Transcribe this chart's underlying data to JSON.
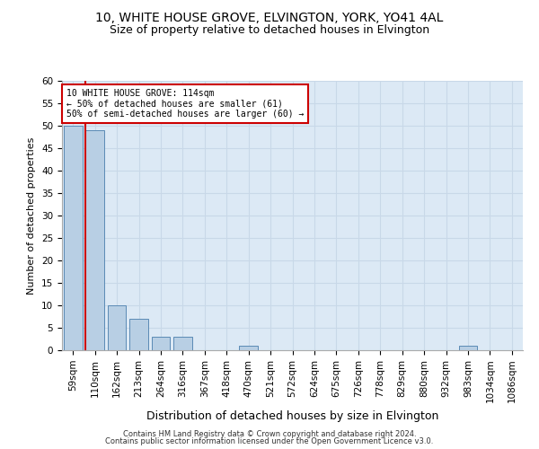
{
  "title1": "10, WHITE HOUSE GROVE, ELVINGTON, YORK, YO41 4AL",
  "title2": "Size of property relative to detached houses in Elvington",
  "xlabel": "Distribution of detached houses by size in Elvington",
  "ylabel": "Number of detached properties",
  "categories": [
    "59sqm",
    "110sqm",
    "162sqm",
    "213sqm",
    "264sqm",
    "316sqm",
    "367sqm",
    "418sqm",
    "470sqm",
    "521sqm",
    "572sqm",
    "624sqm",
    "675sqm",
    "726sqm",
    "778sqm",
    "829sqm",
    "880sqm",
    "932sqm",
    "983sqm",
    "1034sqm",
    "1086sqm"
  ],
  "values": [
    50,
    49,
    10,
    7,
    3,
    3,
    0,
    0,
    1,
    0,
    0,
    0,
    0,
    0,
    0,
    0,
    0,
    0,
    1,
    0,
    0
  ],
  "bar_color": "#b8cfe4",
  "bar_edge_color": "#5a8ab5",
  "red_line_index": 1,
  "annotation_text": "10 WHITE HOUSE GROVE: 114sqm\n← 50% of detached houses are smaller (61)\n50% of semi-detached houses are larger (60) →",
  "annotation_box_color": "#ffffff",
  "annotation_box_edge": "#cc0000",
  "red_line_color": "#cc0000",
  "ylim": [
    0,
    60
  ],
  "yticks": [
    0,
    5,
    10,
    15,
    20,
    25,
    30,
    35,
    40,
    45,
    50,
    55,
    60
  ],
  "grid_color": "#c8d8e8",
  "footer1": "Contains HM Land Registry data © Crown copyright and database right 2024.",
  "footer2": "Contains public sector information licensed under the Open Government Licence v3.0.",
  "bg_color": "#dce9f5",
  "title1_fontsize": 10,
  "title2_fontsize": 9,
  "ylabel_fontsize": 8,
  "xlabel_fontsize": 9,
  "tick_fontsize": 7.5,
  "annotation_fontsize": 7,
  "footer_fontsize": 6
}
